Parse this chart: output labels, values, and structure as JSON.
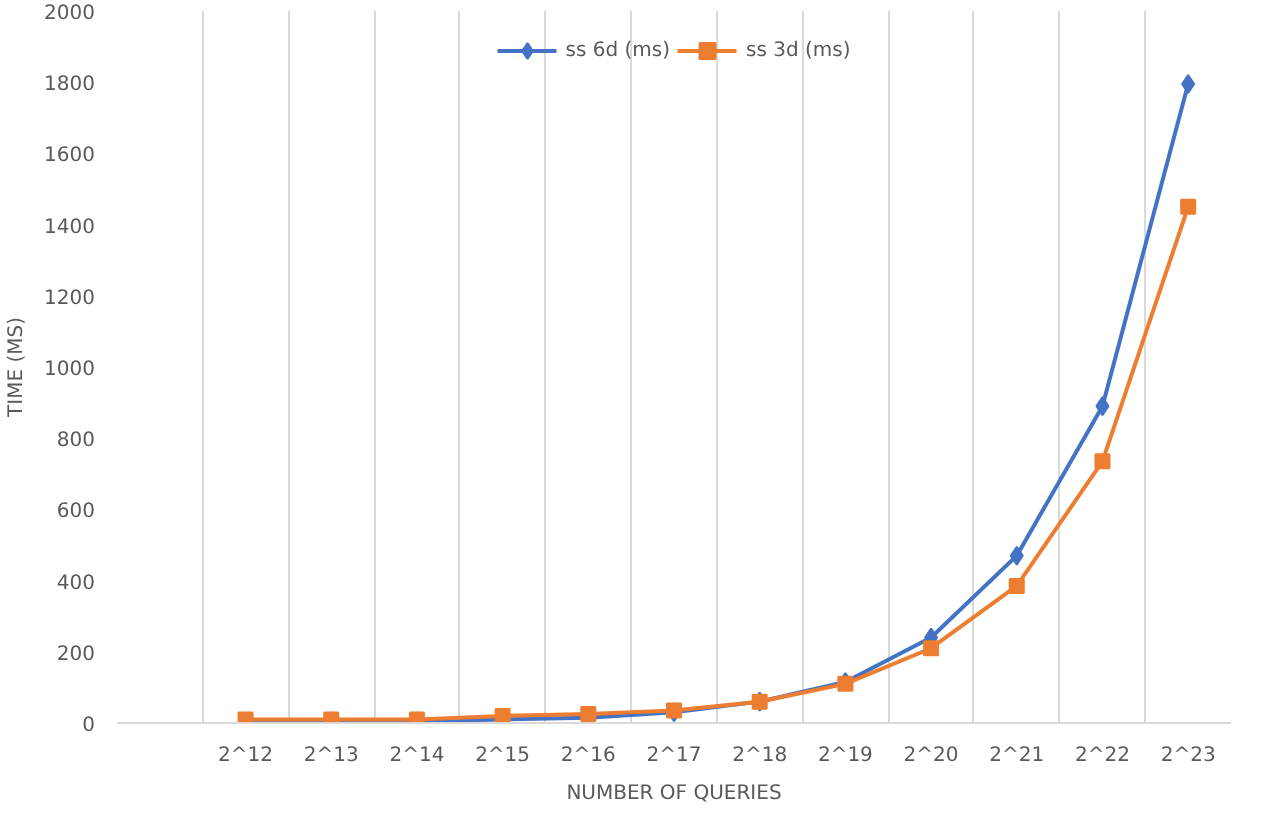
{
  "chart_data": {
    "type": "line",
    "xlabel": "NUMBER OF QUERIES",
    "ylabel": "TIME (MS)",
    "categories": [
      null,
      "2^12",
      "2^13",
      "2^14",
      "2^15",
      "2^16",
      "2^17",
      "2^18",
      "2^19",
      "2^20",
      "2^21",
      "2^22",
      "2^23"
    ],
    "series": [
      {
        "name": "ss 6d (ms)",
        "color": "#4472c4",
        "marker": "diamond",
        "values": [
          null,
          0,
          5,
          5,
          10,
          15,
          30,
          60,
          115,
          240,
          470,
          890,
          1795
        ]
      },
      {
        "name": "ss 3d (ms)",
        "color": "#ed7d31",
        "marker": "square",
        "values": [
          null,
          10,
          10,
          10,
          20,
          25,
          35,
          60,
          110,
          210,
          385,
          735,
          1450
        ]
      }
    ],
    "ylim": [
      0,
      2000
    ],
    "yticks": [
      0,
      200,
      400,
      600,
      800,
      1000,
      1200,
      1400,
      1600,
      1800,
      2000
    ],
    "grid": "x",
    "legend": "top"
  }
}
